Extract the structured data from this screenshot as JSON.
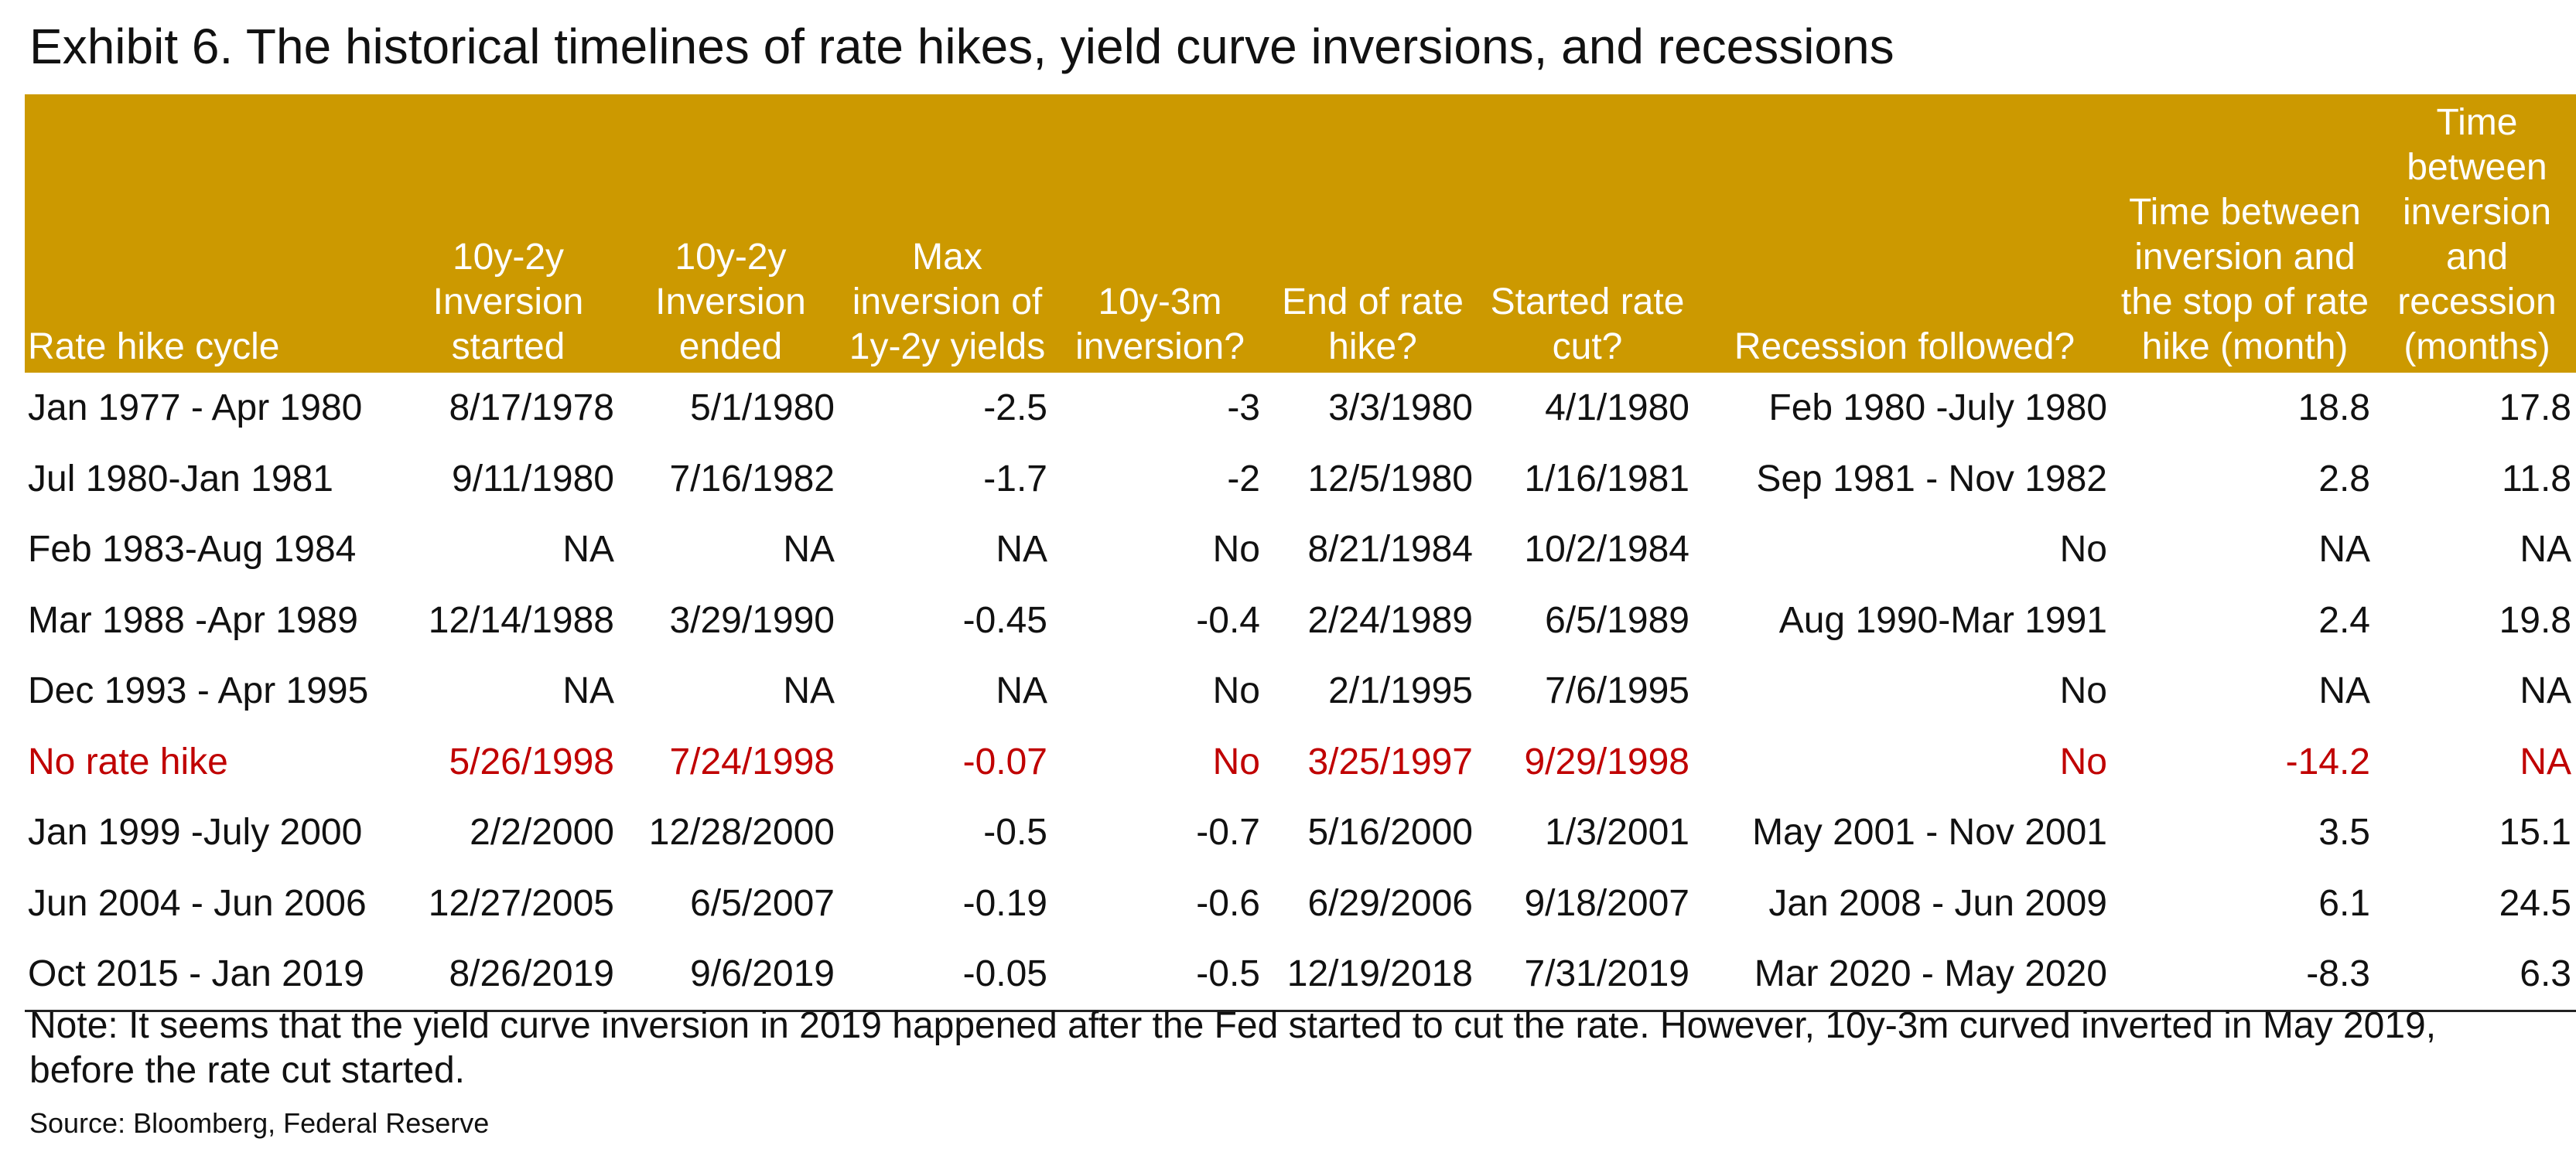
{
  "title": "Exhibit 6. The historical timelines of rate hikes, yield curve inversions, and recessions",
  "table": {
    "headers": [
      "Rate hike cycle",
      "10y-2y Inversion started",
      "10y-2y Inversion ended",
      "Max inversion of 1y-2y yields",
      "10y-3m inversion?",
      "End of rate hike?",
      "Started rate cut?",
      "Recession followed?",
      "Time between inversion and the stop of rate hike (month)",
      "Time between inversion and recession (months)"
    ],
    "rows": [
      [
        "Jan 1977 - Apr 1980",
        "8/17/1978",
        "5/1/1980",
        "-2.5",
        "-3",
        "3/3/1980",
        "4/1/1980",
        "Feb 1980 -July 1980",
        "18.8",
        "17.8"
      ],
      [
        "Jul 1980-Jan 1981",
        "9/11/1980",
        "7/16/1982",
        "-1.7",
        "-2",
        "12/5/1980",
        "1/16/1981",
        "Sep 1981 - Nov 1982",
        "2.8",
        "11.8"
      ],
      [
        "Feb 1983-Aug 1984",
        "NA",
        "NA",
        "NA",
        "No",
        "8/21/1984",
        "10/2/1984",
        "No",
        "NA",
        "NA"
      ],
      [
        "Mar 1988 -Apr 1989",
        "12/14/1988",
        "3/29/1990",
        "-0.45",
        "-0.4",
        "2/24/1989",
        "6/5/1989",
        "Aug 1990-Mar 1991",
        "2.4",
        "19.8"
      ],
      [
        "Dec 1993 - Apr 1995",
        "NA",
        "NA",
        "NA",
        "No",
        "2/1/1995",
        "7/6/1995",
        "No",
        "NA",
        "NA"
      ],
      [
        "No rate hike",
        "5/26/1998",
        "7/24/1998",
        "-0.07",
        "No",
        "3/25/1997",
        "9/29/1998",
        "No",
        "-14.2",
        "NA"
      ],
      [
        "Jan 1999 -July 2000",
        "2/2/2000",
        "12/28/2000",
        "-0.5",
        "-0.7",
        "5/16/2000",
        "1/3/2001",
        "May 2001 - Nov 2001",
        "3.5",
        "15.1"
      ],
      [
        "Jun 2004 - Jun 2006",
        "12/27/2005",
        "6/5/2007",
        "-0.19",
        "-0.6",
        "6/29/2006",
        "9/18/2007",
        "Jan 2008 - Jun 2009",
        "6.1",
        "24.5"
      ],
      [
        "Oct 2015 - Jan 2019",
        "8/26/2019",
        "9/6/2019",
        "-0.05",
        "-0.5",
        "12/19/2018",
        "7/31/2019",
        "Mar 2020 - May 2020",
        "-8.3",
        "6.3"
      ]
    ]
  },
  "note": "Note: It seems that the yield curve inversion in 2019 happened after the Fed started to cut the rate. However, 10y-3m curved inverted in May 2019, before the rate cut started.",
  "source": "Source: Bloomberg, Federal Reserve",
  "colors": {
    "header_bg": "#cc9900",
    "header_text": "#ffffff",
    "highlight": "#c00000"
  }
}
